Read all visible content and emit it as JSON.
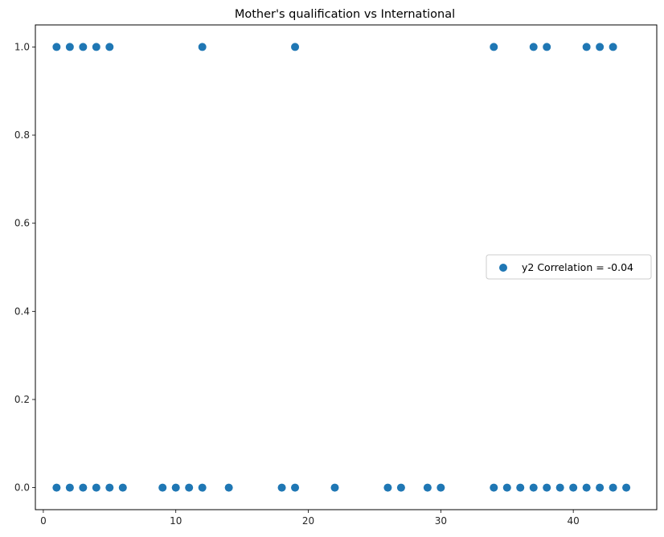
{
  "chart_data": {
    "type": "scatter",
    "title": "Mother's qualification vs International",
    "xlabel": "",
    "ylabel": "",
    "xlim": [
      -0.6,
      46.3
    ],
    "ylim": [
      -0.05,
      1.05
    ],
    "x_ticks": [
      0,
      10,
      20,
      30,
      40
    ],
    "x_tick_labels": [
      "0",
      "10",
      "20",
      "30",
      "40"
    ],
    "y_ticks": [
      0.0,
      0.2,
      0.4,
      0.6,
      0.8,
      1.0
    ],
    "y_tick_labels": [
      "0.0",
      "0.2",
      "0.4",
      "0.6",
      "0.8",
      "1.0"
    ],
    "grid": false,
    "legend_position": "center-right",
    "series": [
      {
        "name": "y2 Correlation = -0.04",
        "color": "#1f77b4",
        "points": [
          [
            1,
            1
          ],
          [
            2,
            1
          ],
          [
            3,
            1
          ],
          [
            4,
            1
          ],
          [
            5,
            1
          ],
          [
            12,
            1
          ],
          [
            19,
            1
          ],
          [
            34,
            1
          ],
          [
            37,
            1
          ],
          [
            38,
            1
          ],
          [
            41,
            1
          ],
          [
            42,
            1
          ],
          [
            43,
            1
          ],
          [
            1,
            0
          ],
          [
            2,
            0
          ],
          [
            3,
            0
          ],
          [
            4,
            0
          ],
          [
            5,
            0
          ],
          [
            6,
            0
          ],
          [
            9,
            0
          ],
          [
            10,
            0
          ],
          [
            11,
            0
          ],
          [
            12,
            0
          ],
          [
            14,
            0
          ],
          [
            18,
            0
          ],
          [
            19,
            0
          ],
          [
            22,
            0
          ],
          [
            26,
            0
          ],
          [
            27,
            0
          ],
          [
            29,
            0
          ],
          [
            30,
            0
          ],
          [
            34,
            0
          ],
          [
            35,
            0
          ],
          [
            36,
            0
          ],
          [
            37,
            0
          ],
          [
            38,
            0
          ],
          [
            39,
            0
          ],
          [
            40,
            0
          ],
          [
            41,
            0
          ],
          [
            42,
            0
          ],
          [
            43,
            0
          ],
          [
            44,
            0
          ]
        ]
      }
    ]
  }
}
